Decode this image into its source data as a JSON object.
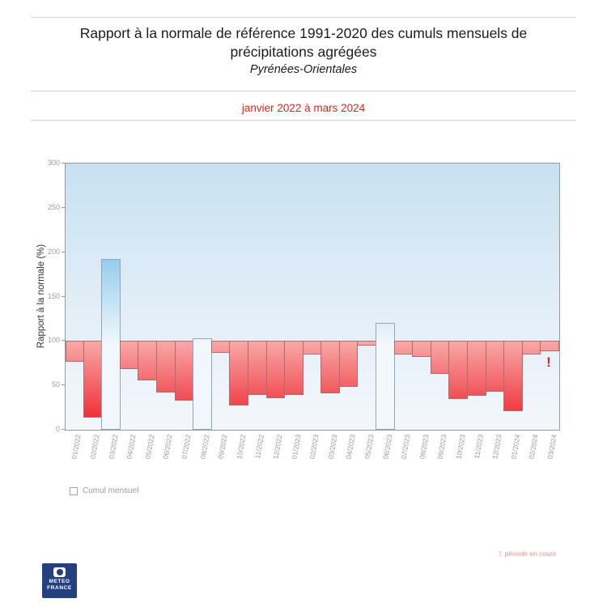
{
  "header": {
    "title": "Rapport à la normale de référence 1991-2020 des cumuls mensuels de précipitations agrégées",
    "subtitle": "Pyrénées-Orientales",
    "period": "janvier 2022 à mars 2024"
  },
  "chart_data": {
    "type": "bar",
    "title": "Rapport à la normale de référence 1991-2020 des cumuls mensuels de précipitations agrégées — Pyrénées-Orientales",
    "xlabel": "",
    "ylabel": "Rapport à la normale (%)",
    "ylim": [
      0,
      300
    ],
    "yticks": [
      0,
      50,
      100,
      150,
      200,
      250,
      300
    ],
    "baseline": 100,
    "grid": false,
    "legend_position": "bottom-left",
    "categories": [
      "01/2022",
      "02/2022",
      "03/2022",
      "04/2022",
      "05/2022",
      "06/2022",
      "07/2022",
      "08/2022",
      "09/2022",
      "10/2022",
      "11/2022",
      "12/2022",
      "01/2023",
      "02/2023",
      "03/2023",
      "04/2023",
      "05/2023",
      "06/2023",
      "07/2023",
      "08/2023",
      "09/2023",
      "10/2023",
      "11/2023",
      "12/2023",
      "01/2024",
      "02/2024",
      "03/2024"
    ],
    "values": [
      77,
      14,
      192,
      68,
      56,
      42,
      33,
      103,
      87,
      27,
      39,
      36,
      39,
      85,
      41,
      48,
      95,
      120,
      85,
      82,
      63,
      35,
      38,
      43,
      21,
      85,
      88
    ],
    "series_name": "Cumul mensuel",
    "colors": {
      "above_normal_top": "#2d9ddb",
      "above_normal_bottom": "#f0f6fb",
      "below_normal_top": "#f8a8a8",
      "below_normal_bottom": "#ed1c24",
      "plot_bg_top": "#c7e1f2",
      "plot_bg_bottom": "#f3f7fb",
      "axis_text": "#9a9a9a"
    }
  },
  "legend": {
    "label": "Cumul mensuel"
  },
  "annotations": {
    "current_period_marker": "!",
    "current_period_month": "03/2024",
    "footnote": "!: période en cours",
    "marker_color": "#e3231c",
    "footnote_color": "#f19090",
    "period_color": "#e3241c"
  },
  "footer": {
    "logo_line1": "METEO",
    "logo_line2": "FRANCE",
    "logo_color": "#24407e"
  }
}
